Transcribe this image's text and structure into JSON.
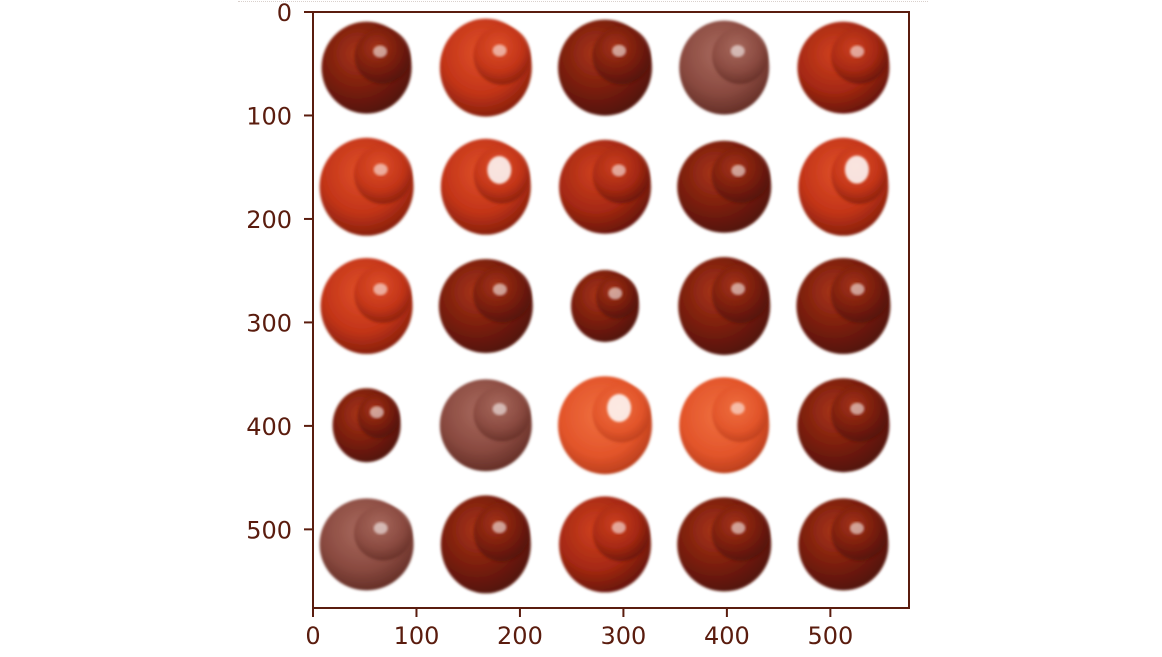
{
  "chart_data": {
    "type": "image",
    "xlim": [
      0,
      576
    ],
    "ylim": [
      576,
      0
    ],
    "xticks": [
      0,
      100,
      200,
      300,
      400,
      500
    ],
    "yticks": [
      0,
      100,
      200,
      300,
      400,
      500
    ],
    "xtick_labels": [
      "0",
      "100",
      "200",
      "300",
      "400",
      "500"
    ],
    "ytick_labels": [
      "0",
      "100",
      "200",
      "300",
      "400",
      "500"
    ],
    "title": "",
    "xlabel": "",
    "ylabel": "",
    "grid": false,
    "grid_rows": 5,
    "grid_cols": 5,
    "tiles": [
      {
        "row": 0,
        "col": 0,
        "tone": "dark"
      },
      {
        "row": 0,
        "col": 1,
        "tone": "bright"
      },
      {
        "row": 0,
        "col": 2,
        "tone": "dark-lumpy"
      },
      {
        "row": 0,
        "col": 3,
        "tone": "muted"
      },
      {
        "row": 0,
        "col": 4,
        "tone": "medium"
      },
      {
        "row": 1,
        "col": 0,
        "tone": "bright"
      },
      {
        "row": 1,
        "col": 1,
        "tone": "bright-glare"
      },
      {
        "row": 1,
        "col": 2,
        "tone": "medium"
      },
      {
        "row": 1,
        "col": 3,
        "tone": "dark"
      },
      {
        "row": 1,
        "col": 4,
        "tone": "bright-glare"
      },
      {
        "row": 2,
        "col": 0,
        "tone": "bright"
      },
      {
        "row": 2,
        "col": 1,
        "tone": "dark"
      },
      {
        "row": 2,
        "col": 2,
        "tone": "dark-small"
      },
      {
        "row": 2,
        "col": 3,
        "tone": "dark"
      },
      {
        "row": 2,
        "col": 4,
        "tone": "dark"
      },
      {
        "row": 3,
        "col": 0,
        "tone": "dark-small"
      },
      {
        "row": 3,
        "col": 1,
        "tone": "muted"
      },
      {
        "row": 3,
        "col": 2,
        "tone": "orange-glare"
      },
      {
        "row": 3,
        "col": 3,
        "tone": "orange"
      },
      {
        "row": 3,
        "col": 4,
        "tone": "dark"
      },
      {
        "row": 4,
        "col": 0,
        "tone": "muted"
      },
      {
        "row": 4,
        "col": 1,
        "tone": "dark"
      },
      {
        "row": 4,
        "col": 2,
        "tone": "medium"
      },
      {
        "row": 4,
        "col": 3,
        "tone": "dark"
      },
      {
        "row": 4,
        "col": 4,
        "tone": "dark"
      }
    ],
    "colors": {
      "axis": "#5a1c0e",
      "dark": "#7a1e0c",
      "bright": "#c6361a",
      "muted": "#8a4a40",
      "orange": "#e2542a"
    }
  }
}
